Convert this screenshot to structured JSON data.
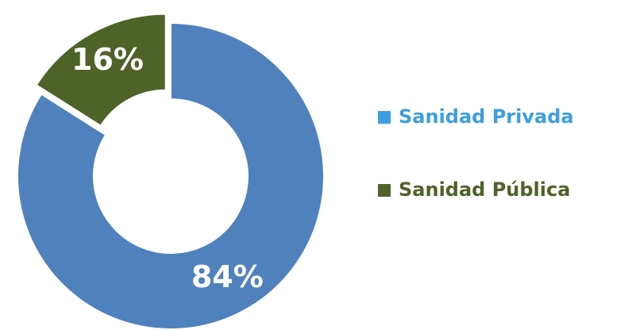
{
  "chart_data": {
    "type": "donut",
    "categories": [
      "Sanidad Privada",
      "Sanidad Pública"
    ],
    "values": [
      84,
      16
    ],
    "value_labels": [
      "84%",
      "16%"
    ],
    "colors": [
      "#4f81bd",
      "#4f6228"
    ],
    "legend_colors": [
      "#3d9ee0",
      "#4f6228"
    ],
    "legend": "right"
  }
}
